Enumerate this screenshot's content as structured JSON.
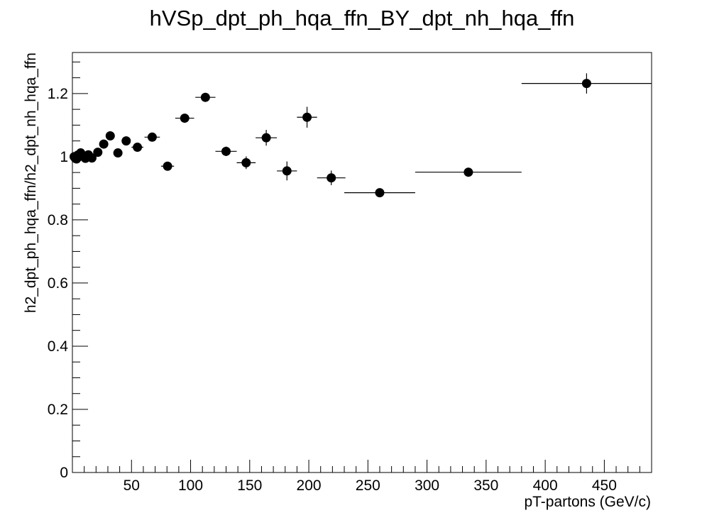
{
  "chart_data": {
    "type": "scatter",
    "title": "hVSp_dpt_ph_hqa_ffn_BY_dpt_nh_hqa_ffn",
    "xlabel": "pT-partons (GeV/c)",
    "ylabel": "h2_dpt_ph_hqa_ffn/h2_dpt_nh_hqa_ffn",
    "xlim": [
      0,
      490
    ],
    "ylim": [
      0,
      1.33
    ],
    "x_ticks": [
      50,
      100,
      150,
      200,
      250,
      300,
      350,
      400,
      450
    ],
    "x_tick_labels": [
      "50",
      "100",
      "150",
      "200",
      "250",
      "300",
      "350",
      "400",
      "450"
    ],
    "y_ticks": [
      0,
      0.2,
      0.4,
      0.6,
      0.8,
      1.0,
      1.2
    ],
    "y_tick_labels": [
      "0",
      "0.2",
      "0.4",
      "0.6",
      "0.8",
      "1",
      "1.2"
    ],
    "grid": false,
    "legend": "none",
    "marker_color": "#000000",
    "points": [
      {
        "x": 1.5,
        "y": 1.0,
        "xerr": 0.5,
        "yerr": 0.005
      },
      {
        "x": 2.5,
        "y": 0.995,
        "xerr": 0.5,
        "yerr": 0.005
      },
      {
        "x": 3.5,
        "y": 0.993,
        "xerr": 0.5,
        "yerr": 0.005
      },
      {
        "x": 4.5,
        "y": 1.005,
        "xerr": 0.5,
        "yerr": 0.005
      },
      {
        "x": 5.5,
        "y": 1.0,
        "xerr": 0.5,
        "yerr": 0.005
      },
      {
        "x": 7,
        "y": 1.012,
        "xerr": 1,
        "yerr": 0.006
      },
      {
        "x": 9,
        "y": 1.003,
        "xerr": 1,
        "yerr": 0.006
      },
      {
        "x": 11,
        "y": 0.995,
        "xerr": 1,
        "yerr": 0.006
      },
      {
        "x": 13.5,
        "y": 1.006,
        "xerr": 1.5,
        "yerr": 0.006
      },
      {
        "x": 16.5,
        "y": 0.996,
        "xerr": 1.5,
        "yerr": 0.007
      },
      {
        "x": 21.5,
        "y": 1.014,
        "xerr": 2.5,
        "yerr": 0.007
      },
      {
        "x": 26.5,
        "y": 1.04,
        "xerr": 2.5,
        "yerr": 0.008
      },
      {
        "x": 32,
        "y": 1.066,
        "xerr": 3,
        "yerr": 0.009
      },
      {
        "x": 38.5,
        "y": 1.012,
        "xerr": 3.5,
        "yerr": 0.009
      },
      {
        "x": 45.5,
        "y": 1.05,
        "xerr": 3.5,
        "yerr": 0.01
      },
      {
        "x": 55,
        "y": 1.03,
        "xerr": 5,
        "yerr": 0.011
      },
      {
        "x": 67.5,
        "y": 1.062,
        "xerr": 6.5,
        "yerr": 0.012
      },
      {
        "x": 80.5,
        "y": 0.97,
        "xerr": 5.5,
        "yerr": 0.013
      },
      {
        "x": 95,
        "y": 1.122,
        "xerr": 8,
        "yerr": 0.013
      },
      {
        "x": 112.5,
        "y": 1.188,
        "xerr": 8.5,
        "yerr": 0.013
      },
      {
        "x": 130,
        "y": 1.017,
        "xerr": 9,
        "yerr": 0.015
      },
      {
        "x": 147,
        "y": 0.981,
        "xerr": 8,
        "yerr": 0.02
      },
      {
        "x": 164,
        "y": 1.06,
        "xerr": 9,
        "yerr": 0.025
      },
      {
        "x": 181.5,
        "y": 0.955,
        "xerr": 8.5,
        "yerr": 0.03
      },
      {
        "x": 198.5,
        "y": 1.125,
        "xerr": 8.5,
        "yerr": 0.033
      },
      {
        "x": 219,
        "y": 0.933,
        "xerr": 12,
        "yerr": 0.023
      },
      {
        "x": 260,
        "y": 0.886,
        "xerr": 30,
        "yerr": 0.01
      },
      {
        "x": 335,
        "y": 0.951,
        "xerr": 45,
        "yerr": 0.012
      },
      {
        "x": 435,
        "y": 1.232,
        "xerr": 55,
        "yerr": 0.032
      }
    ]
  }
}
